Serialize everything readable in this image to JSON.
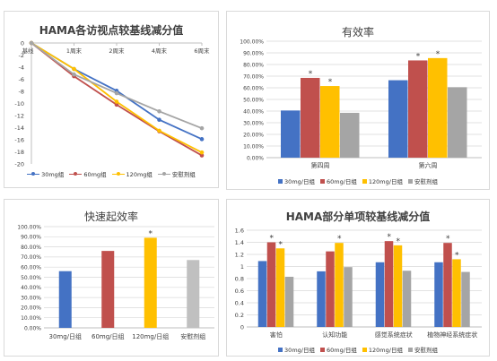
{
  "colors": {
    "30mg": "#4472c4",
    "60mg": "#c0504d",
    "120mg": "#ffc000",
    "placebo": "#a5a5a5",
    "placebo_bar_3": "#c0c0c0"
  },
  "chart_data": [
    {
      "type": "line",
      "title": "HAMA各访视点较基线减分值",
      "x": [
        "基线",
        "1周末",
        "2周末",
        "4周末",
        "6周末"
      ],
      "ylim": [
        -20,
        0
      ],
      "yticks": [
        0,
        -2,
        -4,
        -6,
        -8,
        -10,
        -12,
        -14,
        -16,
        -18,
        -20
      ],
      "grid": false,
      "legend": "bottom",
      "series": [
        {
          "name": "30mg组",
          "values": [
            0,
            -4.3,
            -7.9,
            -12.7,
            -15.9
          ]
        },
        {
          "name": "60mg组",
          "values": [
            0,
            -5.5,
            -10.2,
            -14.6,
            -18.6
          ]
        },
        {
          "name": "120mg组",
          "values": [
            0,
            -4.3,
            -9.7,
            -14.5,
            -18.1
          ]
        },
        {
          "name": "安慰剂组",
          "values": [
            0,
            -5.2,
            -8.3,
            -11.3,
            -14.1
          ]
        }
      ]
    },
    {
      "type": "bar",
      "title": "有效率",
      "categories": [
        "第四周",
        "第六周"
      ],
      "ylim": [
        0,
        100
      ],
      "yticks": [
        "0.00%",
        "10.00%",
        "20.00%",
        "30.00%",
        "40.00%",
        "50.00%",
        "60.00%",
        "70.00%",
        "80.00%",
        "90.00%",
        "100.00%"
      ],
      "grid": true,
      "legend": "bottom",
      "series": [
        {
          "name": "30mg/日组",
          "values": [
            40.5,
            66.5
          ]
        },
        {
          "name": "60mg/日组",
          "values": [
            68.5,
            83.5
          ]
        },
        {
          "name": "120mg/日组",
          "values": [
            61.5,
            85.5
          ]
        },
        {
          "name": "安慰剂组",
          "values": [
            38.5,
            60.5
          ]
        }
      ],
      "stars": [
        [
          false,
          true,
          true,
          false
        ],
        [
          false,
          true,
          true,
          false
        ]
      ],
      "star_symbol": "*"
    },
    {
      "type": "bar",
      "title": "快速起效率",
      "categories": [
        "30mg/日组",
        "60mg/日组",
        "120mg/日组",
        "安慰剂组"
      ],
      "values": [
        56,
        76,
        89,
        67
      ],
      "ylim": [
        0,
        100
      ],
      "yticks": [
        "0.00%",
        "10.00%",
        "20.00%",
        "30.00%",
        "40.00%",
        "50.00%",
        "60.00%",
        "70.00%",
        "80.00%",
        "90.00%",
        "100.00%"
      ],
      "grid": true,
      "stars": [
        false,
        false,
        true,
        false
      ],
      "star_symbol": "*"
    },
    {
      "type": "bar",
      "title": "HAMA部分单项较基线减分值",
      "categories": [
        "害怕",
        "认知功能",
        "感觉系统症状",
        "植物神经系统症状"
      ],
      "ylim": [
        0,
        1.6
      ],
      "yticks": [
        "0",
        "0.2",
        "0.4",
        "0.6",
        "0.8",
        "1",
        "1.2",
        "1.4",
        "1.6"
      ],
      "grid": true,
      "legend": "bottom",
      "series": [
        {
          "name": "30mg/日组",
          "values": [
            1.09,
            0.92,
            1.07,
            1.07
          ]
        },
        {
          "name": "60mg/日组",
          "values": [
            1.4,
            1.25,
            1.42,
            1.39
          ]
        },
        {
          "name": "120mg/日组",
          "values": [
            1.3,
            1.39,
            1.35,
            1.12
          ]
        },
        {
          "name": "安慰剂组",
          "values": [
            0.83,
            0.99,
            0.93,
            0.91
          ]
        }
      ],
      "stars": [
        [
          false,
          true,
          true,
          false
        ],
        [
          false,
          false,
          true,
          false
        ],
        [
          false,
          true,
          true,
          false
        ],
        [
          false,
          true,
          true,
          false
        ]
      ],
      "star_symbol": "*"
    }
  ]
}
